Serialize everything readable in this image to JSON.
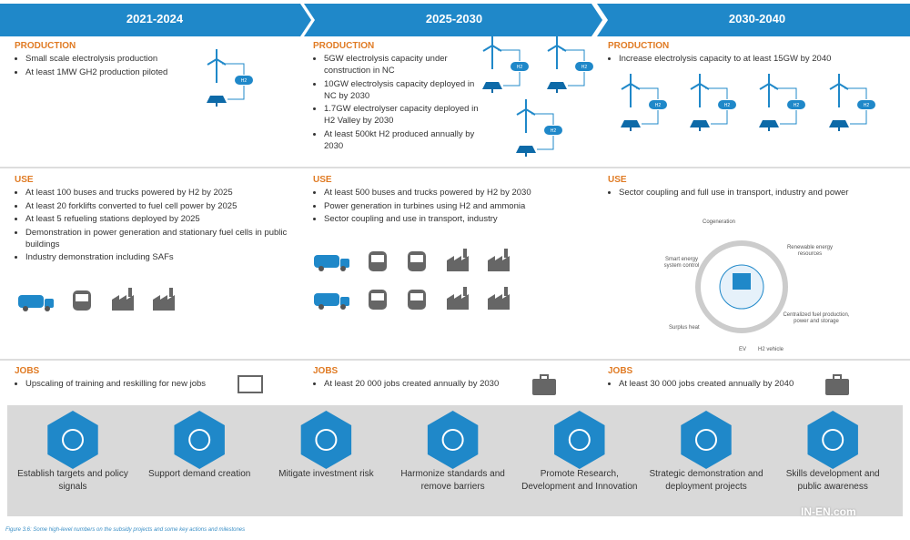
{
  "periods": [
    "2021-2024",
    "2025-2030",
    "2030-2040"
  ],
  "columns": [
    {
      "production": {
        "heading": "PRODUCTION",
        "items": [
          "Small scale electrolysis production",
          "At least 1MW GH2 production piloted"
        ]
      },
      "use": {
        "heading": "USE",
        "items": [
          "At least 100 buses and trucks powered by H2 by 2025",
          "At least 20 forklifts converted to fuel cell power by 2025",
          "At least 5 refueling stations deployed by 2025",
          "Demonstration in power generation and stationary fuel cells in public buildings",
          "Industry demonstration including SAFs"
        ]
      },
      "jobs": {
        "heading": "JOBS",
        "items": [
          "Upscaling of training and reskilling for new jobs"
        ]
      }
    },
    {
      "production": {
        "heading": "PRODUCTION",
        "items": [
          "5GW electrolysis capacity under construction in NC",
          "10GW electrolysis capacity deployed in NC by 2030",
          "1.7GW electrolyser capacity deployed in H2 Valley by 2030",
          "At least 500kt H2 produced annually by 2030"
        ]
      },
      "use": {
        "heading": "USE",
        "items": [
          "At least 500 buses and trucks powered by H2 by 2030",
          "Power generation in turbines using  H2 and ammonia",
          "Sector coupling  and use in transport, industry"
        ]
      },
      "jobs": {
        "heading": "JOBS",
        "items": [
          "At least 20 000 jobs created annually by 2030"
        ]
      }
    },
    {
      "production": {
        "heading": "PRODUCTION",
        "items": [
          "Increase electrolysis capacity to at least 15GW by 2040"
        ]
      },
      "use": {
        "heading": "USE",
        "items": [
          "Sector coupling  and full use in transport, industry and power"
        ]
      },
      "jobs": {
        "heading": "JOBS",
        "items": [
          "At least 30 000 jobs created annually by 2040"
        ]
      }
    }
  ],
  "tank_label": "H2",
  "coupling_diagram": {
    "labels": [
      "Cogeneration",
      "Renewable energy resources",
      "Smart energy system control",
      "Centralized fuel production, power and storage",
      "Surplus heat",
      "EV",
      "H2 vehicle"
    ]
  },
  "actions": [
    "Establish targets and policy signals",
    "Support demand creation",
    "Mitigate investment risk",
    "Harmonize standards and remove barriers",
    "Promote Research, Development and Innovation",
    "Strategic demonstration and deployment projects",
    "Skills development and public awareness"
  ],
  "caption": "Figure 3.6: Some high-level numbers on the subsidy projects and some key actions and milestones",
  "watermark": "IN-EN.com"
}
